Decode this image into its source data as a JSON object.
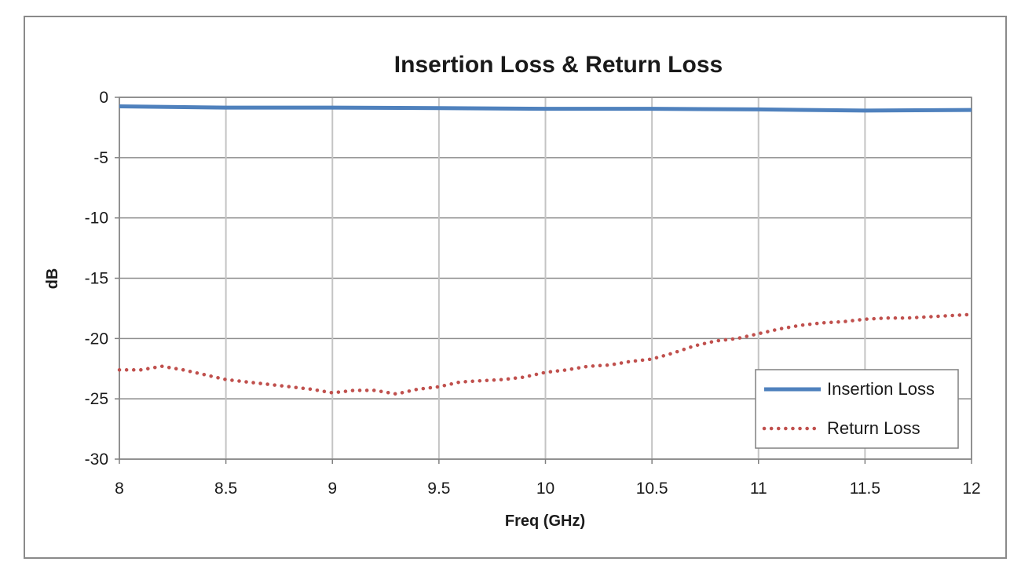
{
  "chart_data": {
    "type": "line",
    "title": "Insertion Loss & Return Loss",
    "xlabel": "Freq (GHz)",
    "ylabel": "dB",
    "xlim": [
      8,
      12
    ],
    "ylim": [
      -30,
      0
    ],
    "x_ticks": [
      "8",
      "8.5",
      "9",
      "9.5",
      "10",
      "10.5",
      "11",
      "11.5",
      "12"
    ],
    "y_ticks": [
      "0",
      "-5",
      "-10",
      "-15",
      "-20",
      "-25",
      "-30"
    ],
    "grid": true,
    "legend_position": "bottom-right",
    "series": [
      {
        "name": "Insertion Loss",
        "color": "#4f81bd",
        "style": "solid",
        "x": [
          8.0,
          8.5,
          9.0,
          9.5,
          10.0,
          10.5,
          11.0,
          11.5,
          12.0
        ],
        "y": [
          -0.75,
          -0.85,
          -0.85,
          -0.9,
          -0.95,
          -0.95,
          -1.0,
          -1.1,
          -1.05
        ]
      },
      {
        "name": "Return Loss",
        "color": "#c0504d",
        "style": "dotted",
        "x": [
          8.0,
          8.1,
          8.2,
          8.3,
          8.4,
          8.5,
          8.6,
          8.7,
          8.8,
          8.9,
          9.0,
          9.1,
          9.2,
          9.3,
          9.4,
          9.5,
          9.6,
          9.7,
          9.8,
          9.9,
          10.0,
          10.1,
          10.2,
          10.3,
          10.4,
          10.5,
          10.6,
          10.7,
          10.8,
          10.9,
          11.0,
          11.1,
          11.2,
          11.3,
          11.4,
          11.5,
          11.6,
          11.7,
          11.8,
          11.9,
          12.0
        ],
        "y": [
          -22.6,
          -22.6,
          -22.3,
          -22.6,
          -23.0,
          -23.4,
          -23.6,
          -23.8,
          -24.0,
          -24.2,
          -24.5,
          -24.3,
          -24.3,
          -24.6,
          -24.2,
          -24.0,
          -23.6,
          -23.5,
          -23.4,
          -23.2,
          -22.8,
          -22.6,
          -22.3,
          -22.2,
          -21.9,
          -21.7,
          -21.2,
          -20.6,
          -20.2,
          -20.0,
          -19.6,
          -19.2,
          -18.9,
          -18.7,
          -18.6,
          -18.4,
          -18.3,
          -18.3,
          -18.2,
          -18.1,
          -18.0
        ]
      }
    ]
  }
}
